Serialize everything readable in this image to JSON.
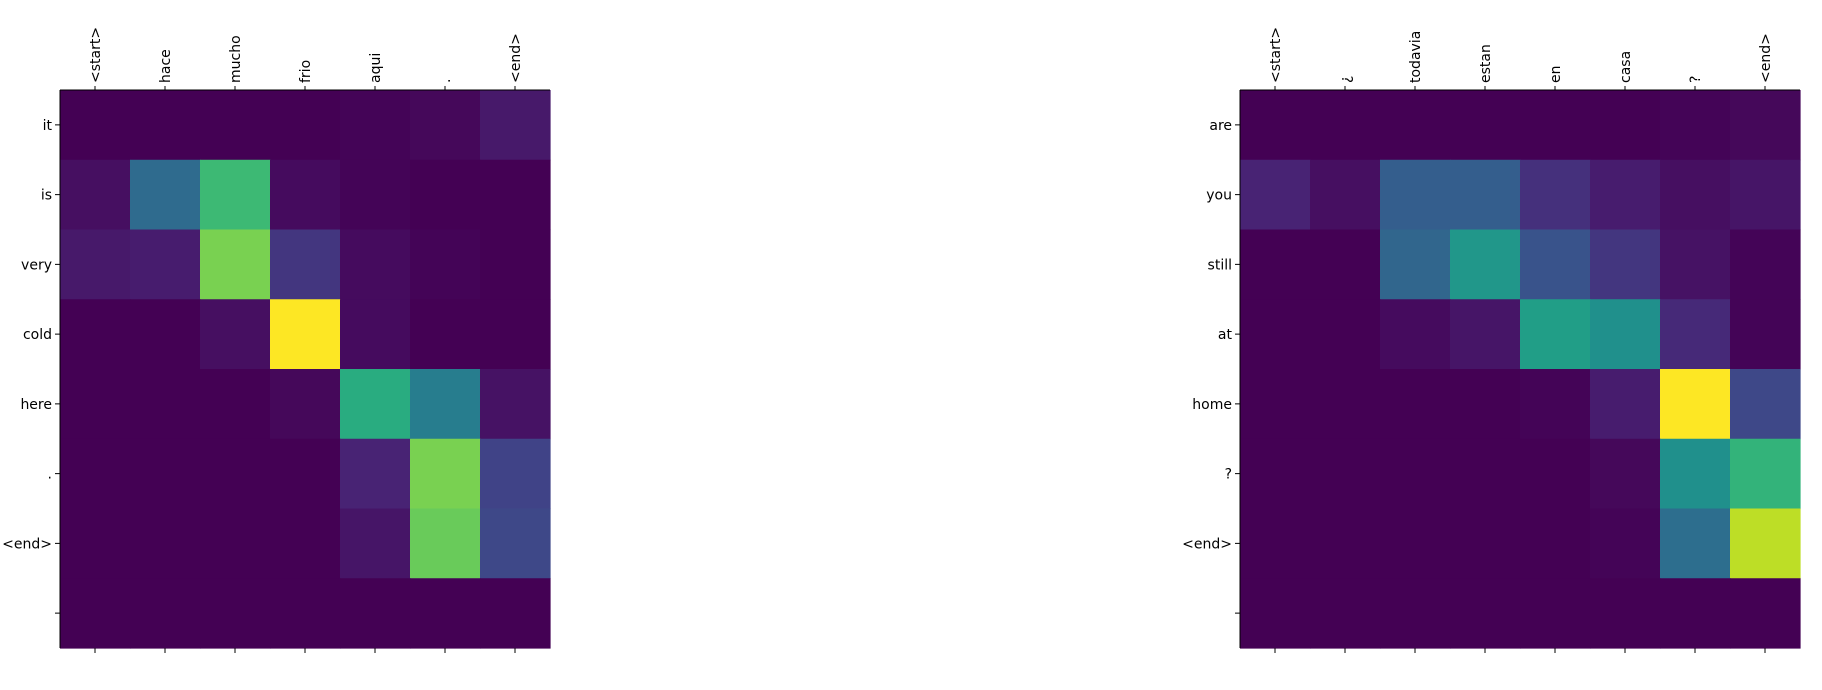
{
  "chart_data": [
    {
      "type": "heatmap",
      "x_tick_labels": [
        "<start>",
        "hace",
        "mucho",
        "frio",
        "aqui",
        ".",
        "<end>"
      ],
      "y_tick_labels": [
        "it",
        "is",
        "very",
        "cold",
        "here",
        ".",
        "<end>",
        ""
      ],
      "value_range": [
        0,
        1
      ],
      "colormap": "viridis",
      "values": [
        [
          0.0,
          0.0,
          0.0,
          0.0,
          0.01,
          0.02,
          0.07
        ],
        [
          0.04,
          0.35,
          0.68,
          0.03,
          0.01,
          0.0,
          0.0
        ],
        [
          0.07,
          0.08,
          0.8,
          0.16,
          0.03,
          0.01,
          0.0
        ],
        [
          0.0,
          0.0,
          0.04,
          1.0,
          0.03,
          0.0,
          0.0
        ],
        [
          0.0,
          0.0,
          0.0,
          0.02,
          0.62,
          0.42,
          0.05
        ],
        [
          0.0,
          0.0,
          0.0,
          0.0,
          0.1,
          0.8,
          0.2
        ],
        [
          0.0,
          0.0,
          0.0,
          0.0,
          0.06,
          0.77,
          0.22
        ],
        [
          0.0,
          0.0,
          0.0,
          0.0,
          0.0,
          0.0,
          0.0
        ]
      ]
    },
    {
      "type": "heatmap",
      "x_tick_labels": [
        "<start>",
        "¿",
        "todavia",
        "estan",
        "en",
        "casa",
        "?",
        "<end>"
      ],
      "y_tick_labels": [
        "are",
        "you",
        "still",
        "at",
        "home",
        "?",
        "<end>",
        ""
      ],
      "value_range": [
        0,
        1
      ],
      "colormap": "viridis",
      "values": [
        [
          0.0,
          0.0,
          0.0,
          0.0,
          0.0,
          0.0,
          0.01,
          0.02
        ],
        [
          0.1,
          0.04,
          0.3,
          0.3,
          0.14,
          0.08,
          0.04,
          0.06
        ],
        [
          0.0,
          0.0,
          0.33,
          0.53,
          0.26,
          0.16,
          0.05,
          0.01
        ],
        [
          0.0,
          0.0,
          0.03,
          0.06,
          0.56,
          0.5,
          0.12,
          0.01
        ],
        [
          0.0,
          0.0,
          0.0,
          0.0,
          0.01,
          0.08,
          1.0,
          0.22
        ],
        [
          0.0,
          0.0,
          0.0,
          0.0,
          0.0,
          0.02,
          0.5,
          0.65
        ],
        [
          0.0,
          0.0,
          0.0,
          0.0,
          0.0,
          0.01,
          0.36,
          0.9
        ],
        [
          0.0,
          0.0,
          0.0,
          0.0,
          0.0,
          0.0,
          0.0,
          0.0
        ]
      ]
    }
  ]
}
